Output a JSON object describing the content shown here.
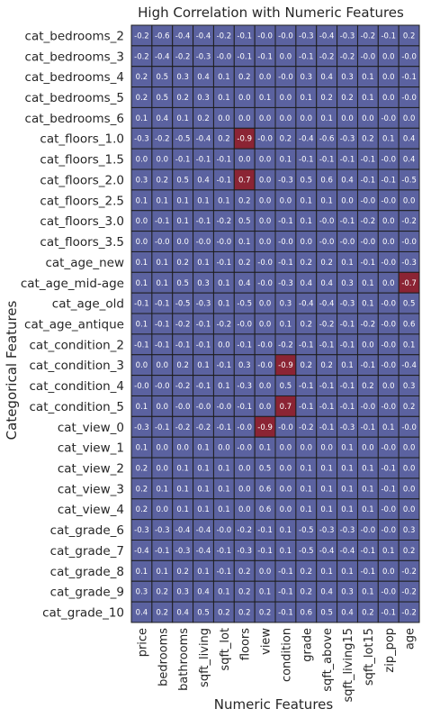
{
  "chart_data": {
    "type": "heatmap",
    "title": "High Correlation with Numeric Features",
    "xlabel": "Numeric Features",
    "ylabel": "Categorical Features",
    "columns": [
      "price",
      "bedrooms",
      "bathrooms",
      "sqft_living",
      "sqft_lot",
      "floors",
      "view",
      "condition",
      "grade",
      "sqft_above",
      "sqft_living15",
      "sqft_lot15",
      "zip_pop",
      "age"
    ],
    "rows": [
      "cat_bedrooms_2",
      "cat_bedrooms_3",
      "cat_bedrooms_4",
      "cat_bedrooms_5",
      "cat_bedrooms_6",
      "cat_floors_1.0",
      "cat_floors_1.5",
      "cat_floors_2.0",
      "cat_floors_2.5",
      "cat_floors_3.0",
      "cat_floors_3.5",
      "cat_age_new",
      "cat_age_mid-age",
      "cat_age_old",
      "cat_age_antique",
      "cat_condition_2",
      "cat_condition_3",
      "cat_condition_4",
      "cat_condition_5",
      "cat_view_0",
      "cat_view_1",
      "cat_view_2",
      "cat_view_3",
      "cat_view_4",
      "cat_grade_6",
      "cat_grade_7",
      "cat_grade_8",
      "cat_grade_9",
      "cat_grade_10"
    ],
    "values": [
      [
        -0.2,
        -0.6,
        -0.4,
        -0.4,
        -0.2,
        -0.1,
        -0.0,
        -0.0,
        -0.3,
        -0.4,
        -0.3,
        -0.2,
        -0.1,
        0.2
      ],
      [
        -0.2,
        -0.4,
        -0.2,
        -0.3,
        -0.0,
        -0.1,
        -0.1,
        0.0,
        -0.1,
        -0.2,
        -0.2,
        -0.0,
        0.0,
        -0.0
      ],
      [
        0.2,
        0.5,
        0.3,
        0.4,
        0.1,
        0.2,
        0.0,
        -0.0,
        0.3,
        0.4,
        0.3,
        0.1,
        0.0,
        -0.1
      ],
      [
        0.2,
        0.5,
        0.2,
        0.3,
        0.1,
        0.0,
        0.1,
        0.0,
        0.1,
        0.2,
        0.2,
        0.1,
        0.0,
        -0.0
      ],
      [
        0.1,
        0.4,
        0.1,
        0.2,
        0.0,
        0.0,
        0.0,
        0.0,
        0.0,
        0.1,
        0.0,
        0.0,
        -0.0,
        0.0
      ],
      [
        -0.3,
        -0.2,
        -0.5,
        -0.4,
        0.2,
        -0.9,
        -0.0,
        0.2,
        -0.4,
        -0.6,
        -0.3,
        0.2,
        0.1,
        0.4
      ],
      [
        0.0,
        0.0,
        -0.1,
        -0.1,
        -0.1,
        0.0,
        0.0,
        0.1,
        -0.1,
        -0.1,
        -0.1,
        -0.1,
        -0.0,
        0.4
      ],
      [
        0.3,
        0.2,
        0.5,
        0.4,
        -0.1,
        0.7,
        0.0,
        -0.3,
        0.5,
        0.6,
        0.4,
        -0.1,
        -0.1,
        -0.5
      ],
      [
        0.1,
        0.1,
        0.1,
        0.1,
        0.1,
        0.2,
        0.0,
        0.0,
        0.1,
        0.1,
        0.0,
        -0.0,
        -0.0,
        0.0
      ],
      [
        0.0,
        -0.1,
        0.1,
        -0.1,
        -0.2,
        0.5,
        0.0,
        -0.1,
        0.1,
        -0.0,
        -0.1,
        -0.2,
        0.0,
        -0.2
      ],
      [
        0.0,
        -0.0,
        0.0,
        -0.0,
        -0.0,
        0.1,
        0.0,
        -0.0,
        0.0,
        -0.0,
        -0.0,
        -0.0,
        0.0,
        -0.0
      ],
      [
        0.1,
        0.1,
        0.2,
        0.1,
        -0.1,
        0.2,
        -0.0,
        -0.1,
        0.2,
        0.2,
        0.1,
        -0.1,
        -0.0,
        -0.3
      ],
      [
        0.1,
        0.1,
        0.5,
        0.3,
        0.1,
        0.4,
        -0.0,
        -0.3,
        0.4,
        0.4,
        0.3,
        0.1,
        0.0,
        -0.7
      ],
      [
        -0.1,
        -0.1,
        -0.5,
        -0.3,
        0.1,
        -0.5,
        0.0,
        0.3,
        -0.4,
        -0.4,
        -0.3,
        0.1,
        -0.0,
        0.5
      ],
      [
        0.1,
        -0.1,
        -0.2,
        -0.1,
        -0.2,
        -0.0,
        0.0,
        0.1,
        0.2,
        -0.2,
        -0.1,
        -0.2,
        -0.0,
        0.6
      ],
      [
        -0.1,
        -0.1,
        -0.1,
        -0.1,
        0.0,
        -0.1,
        -0.0,
        -0.2,
        -0.1,
        -0.1,
        -0.1,
        0.0,
        -0.0,
        0.1
      ],
      [
        0.0,
        0.0,
        0.2,
        0.1,
        -0.1,
        0.3,
        -0.0,
        -0.9,
        0.2,
        0.2,
        0.1,
        -0.1,
        -0.0,
        -0.4
      ],
      [
        -0.0,
        -0.0,
        -0.2,
        -0.1,
        0.1,
        -0.3,
        0.0,
        0.5,
        -0.1,
        -0.1,
        -0.1,
        0.2,
        0.0,
        0.3
      ],
      [
        0.1,
        0.0,
        -0.0,
        -0.0,
        -0.0,
        -0.1,
        0.0,
        0.7,
        -0.1,
        -0.1,
        -0.1,
        -0.0,
        -0.0,
        0.2
      ],
      [
        -0.3,
        -0.1,
        -0.2,
        -0.2,
        -0.1,
        -0.0,
        -0.9,
        -0.0,
        -0.2,
        -0.1,
        -0.3,
        -0.1,
        0.1,
        -0.0
      ],
      [
        0.1,
        0.0,
        0.0,
        0.1,
        0.0,
        -0.0,
        0.1,
        0.0,
        0.0,
        0.0,
        0.1,
        0.0,
        -0.0,
        0.0
      ],
      [
        0.2,
        0.0,
        0.1,
        0.1,
        0.1,
        0.0,
        0.5,
        0.0,
        0.1,
        0.1,
        0.1,
        0.1,
        -0.1,
        0.0
      ],
      [
        0.2,
        0.1,
        0.1,
        0.1,
        0.1,
        0.0,
        0.6,
        0.0,
        0.1,
        0.1,
        0.1,
        0.1,
        -0.1,
        0.0
      ],
      [
        0.2,
        0.0,
        0.1,
        0.1,
        0.1,
        0.0,
        0.6,
        0.0,
        0.1,
        0.1,
        0.1,
        0.1,
        -0.0,
        0.0
      ],
      [
        -0.3,
        -0.3,
        -0.4,
        -0.4,
        -0.0,
        -0.2,
        -0.1,
        0.1,
        -0.5,
        -0.3,
        -0.3,
        -0.0,
        -0.0,
        0.3
      ],
      [
        -0.4,
        -0.1,
        -0.3,
        -0.4,
        -0.1,
        -0.3,
        -0.1,
        0.1,
        -0.5,
        -0.4,
        -0.4,
        -0.1,
        0.1,
        0.2
      ],
      [
        0.1,
        0.1,
        0.2,
        0.1,
        -0.1,
        0.2,
        0.0,
        -0.1,
        0.2,
        0.1,
        0.1,
        -0.1,
        0.0,
        -0.2
      ],
      [
        0.3,
        0.2,
        0.3,
        0.4,
        0.1,
        0.2,
        0.1,
        -0.1,
        0.2,
        0.4,
        0.3,
        0.1,
        -0.0,
        -0.2
      ],
      [
        0.4,
        0.2,
        0.4,
        0.5,
        0.2,
        0.2,
        0.2,
        -0.1,
        0.6,
        0.5,
        0.4,
        0.2,
        -0.1,
        -0.2
      ]
    ],
    "color_scale": {
      "neutral": "#5b62a0",
      "high_abs": "#8b2434",
      "threshold_abs": 0.65
    },
    "grid": true
  }
}
